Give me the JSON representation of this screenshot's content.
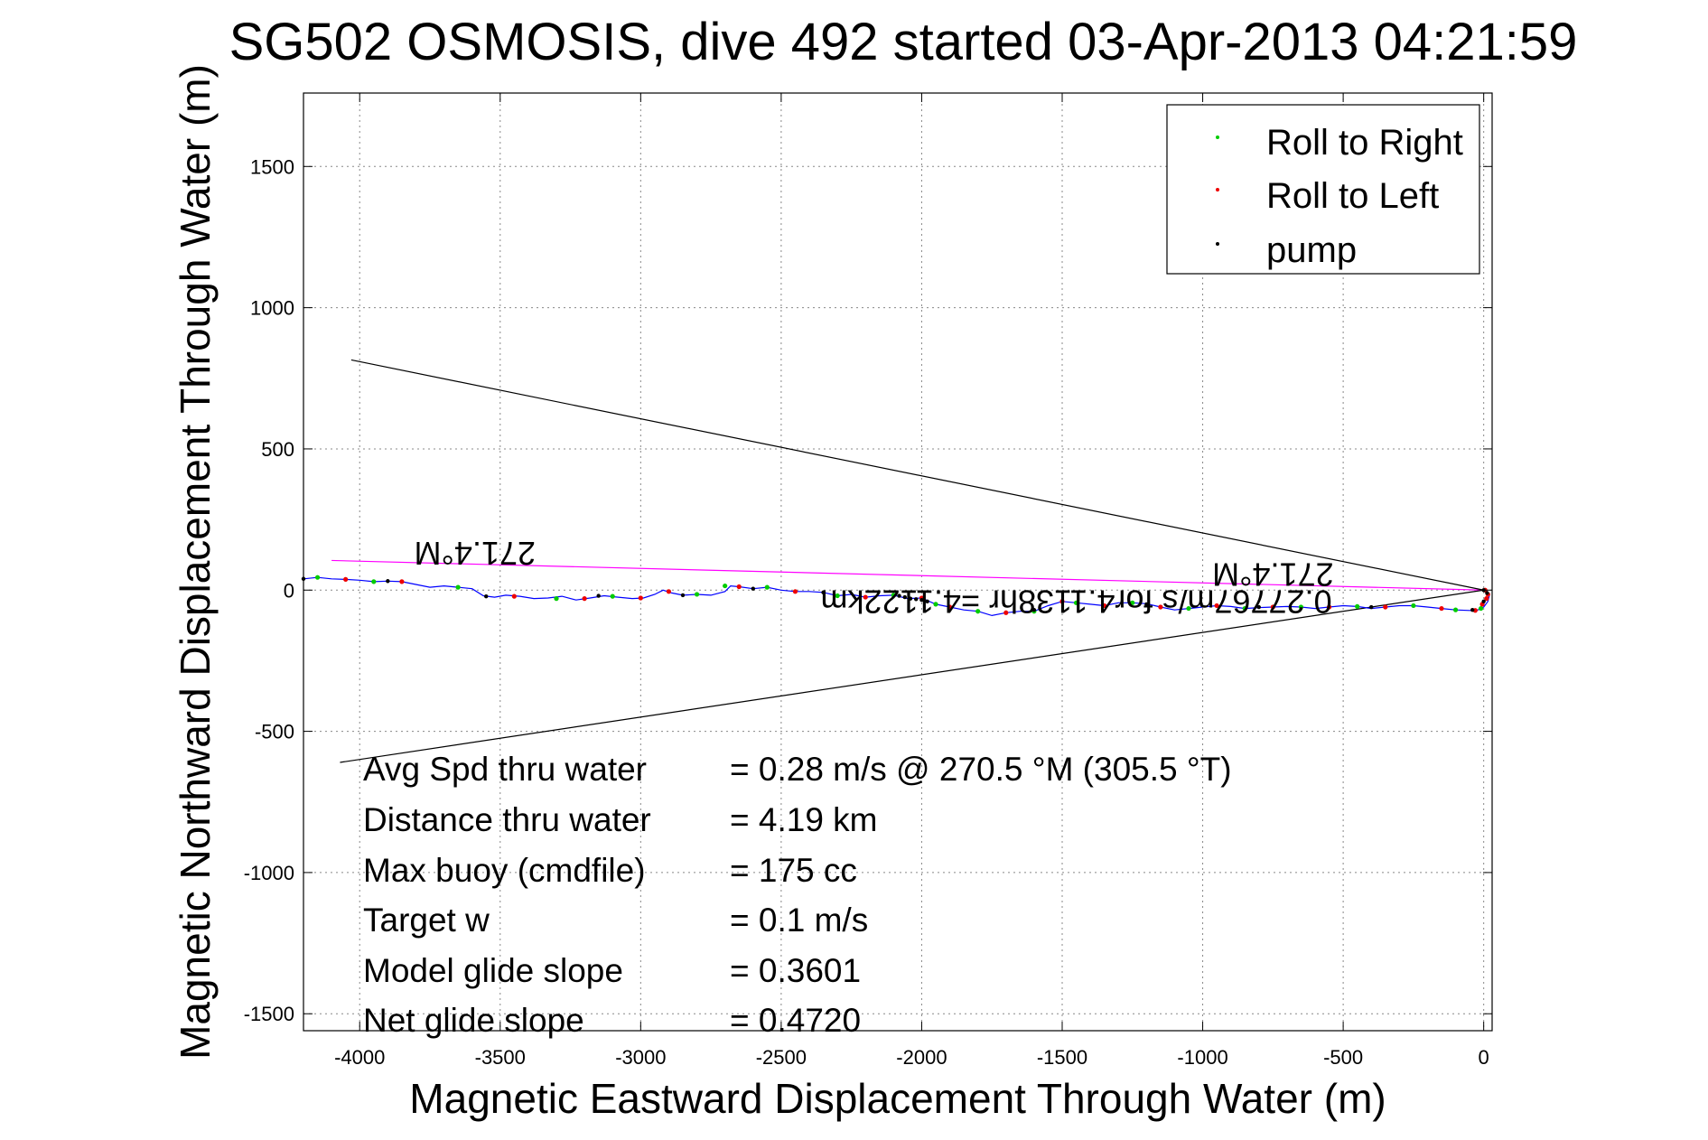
{
  "chart_data": {
    "type": "scatter",
    "title": "SG502 OSMOSIS, dive 492 started 03-Apr-2013 04:21:59",
    "xlabel": "Magnetic Eastward Displacement Through Water (m)",
    "ylabel": "Magnetic Northward Displacement Through Water (m)",
    "xlim": [
      -4200,
      30
    ],
    "ylim": [
      -1560,
      1760
    ],
    "xticks": [
      -4000,
      -3500,
      -3000,
      -2500,
      -2000,
      -1500,
      -1000,
      -500,
      0
    ],
    "yticks": [
      1500,
      1000,
      500,
      0,
      -500,
      -1000,
      -1500
    ],
    "grid": true,
    "legend": {
      "placement": "top-right",
      "entries": [
        {
          "label": "Roll to Right",
          "color": "#00cc00"
        },
        {
          "label": "Roll to Left",
          "color": "#ee0000"
        },
        {
          "label": "pump",
          "color": "#000000"
        }
      ]
    },
    "track": {
      "color": "#0000ff",
      "points": [
        [
          -4200,
          40
        ],
        [
          -4150,
          45
        ],
        [
          -4100,
          40
        ],
        [
          -4050,
          38
        ],
        [
          -4000,
          35
        ],
        [
          -3950,
          30
        ],
        [
          -3900,
          32
        ],
        [
          -3850,
          30
        ],
        [
          -3800,
          20
        ],
        [
          -3750,
          10
        ],
        [
          -3700,
          15
        ],
        [
          -3650,
          10
        ],
        [
          -3600,
          5
        ],
        [
          -3560,
          -20
        ],
        [
          -3520,
          -25
        ],
        [
          -3480,
          -18
        ],
        [
          -3430,
          -22
        ],
        [
          -3380,
          -30
        ],
        [
          -3330,
          -28
        ],
        [
          -3280,
          -22
        ],
        [
          -3230,
          -35
        ],
        [
          -3180,
          -28
        ],
        [
          -3130,
          -20
        ],
        [
          -3080,
          -25
        ],
        [
          -3030,
          -30
        ],
        [
          -2990,
          -28
        ],
        [
          -2950,
          -15
        ],
        [
          -2920,
          0
        ],
        [
          -2890,
          -10
        ],
        [
          -2850,
          -18
        ],
        [
          -2800,
          -15
        ],
        [
          -2750,
          -18
        ],
        [
          -2700,
          -5
        ],
        [
          -2680,
          15
        ],
        [
          -2650,
          12
        ],
        [
          -2600,
          5
        ],
        [
          -2550,
          10
        ],
        [
          -2500,
          0
        ],
        [
          -2450,
          -5
        ],
        [
          -2400,
          -5
        ],
        [
          -2350,
          -8
        ],
        [
          -2300,
          -20
        ],
        [
          -2250,
          -15
        ],
        [
          -2200,
          -25
        ],
        [
          -2150,
          -20
        ],
        [
          -2100,
          -18
        ],
        [
          -2050,
          -30
        ],
        [
          -2000,
          -28
        ],
        [
          -1950,
          -50
        ],
        [
          -1900,
          -60
        ],
        [
          -1850,
          -70
        ],
        [
          -1800,
          -75
        ],
        [
          -1750,
          -90
        ],
        [
          -1700,
          -80
        ],
        [
          -1650,
          -75
        ],
        [
          -1600,
          -75
        ],
        [
          -1550,
          -55
        ],
        [
          -1500,
          -40
        ],
        [
          -1450,
          -45
        ],
        [
          -1400,
          -50
        ],
        [
          -1350,
          -55
        ],
        [
          -1300,
          -45
        ],
        [
          -1250,
          -45
        ],
        [
          -1200,
          -48
        ],
        [
          -1150,
          -60
        ],
        [
          -1100,
          -70
        ],
        [
          -1050,
          -65
        ],
        [
          -1000,
          -60
        ],
        [
          -950,
          -55
        ],
        [
          -900,
          -58
        ],
        [
          -850,
          -65
        ],
        [
          -800,
          -62
        ],
        [
          -750,
          -60
        ],
        [
          -700,
          -58
        ],
        [
          -650,
          -60
        ],
        [
          -600,
          -65
        ],
        [
          -550,
          -60
        ],
        [
          -500,
          -55
        ],
        [
          -450,
          -58
        ],
        [
          -400,
          -65
        ],
        [
          -350,
          -60
        ],
        [
          -300,
          -55
        ],
        [
          -250,
          -55
        ],
        [
          -200,
          -60
        ],
        [
          -150,
          -65
        ],
        [
          -100,
          -70
        ],
        [
          -50,
          -72
        ],
        [
          -20,
          -70
        ],
        [
          0,
          -60
        ],
        [
          15,
          -40
        ],
        [
          20,
          -20
        ],
        [
          10,
          0
        ],
        [
          0,
          5
        ]
      ]
    },
    "roll_right_points": [
      [
        -4150,
        45
      ],
      [
        -3950,
        30
      ],
      [
        -3650,
        10
      ],
      [
        -3300,
        -30
      ],
      [
        -3100,
        -22
      ],
      [
        -2800,
        -15
      ],
      [
        -2700,
        15
      ],
      [
        -2550,
        10
      ],
      [
        -2300,
        -20
      ],
      [
        -2100,
        -18
      ],
      [
        -1950,
        -50
      ],
      [
        -1800,
        -75
      ],
      [
        -1600,
        -75
      ],
      [
        -1450,
        -45
      ],
      [
        -1250,
        -45
      ],
      [
        -1050,
        -65
      ],
      [
        -850,
        -65
      ],
      [
        -650,
        -60
      ],
      [
        -450,
        -58
      ],
      [
        -250,
        -55
      ],
      [
        -100,
        -70
      ],
      [
        -10,
        -65
      ]
    ],
    "roll_left_points": [
      [
        -4050,
        38
      ],
      [
        -3850,
        30
      ],
      [
        -3450,
        -22
      ],
      [
        -3200,
        -30
      ],
      [
        -3000,
        -28
      ],
      [
        -2900,
        -5
      ],
      [
        -2650,
        12
      ],
      [
        -2450,
        -5
      ],
      [
        -2200,
        -25
      ],
      [
        -2000,
        -28
      ],
      [
        -1900,
        -60
      ],
      [
        -1700,
        -80
      ],
      [
        -1500,
        -40
      ],
      [
        -1350,
        -55
      ],
      [
        -1150,
        -60
      ],
      [
        -950,
        -55
      ],
      [
        -750,
        -60
      ],
      [
        -550,
        -60
      ],
      [
        -350,
        -60
      ],
      [
        -150,
        -65
      ],
      [
        -30,
        -72
      ],
      [
        10,
        -30
      ],
      [
        15,
        -15
      ],
      [
        5,
        0
      ],
      [
        -5,
        -50
      ]
    ],
    "pump_points": [
      [
        -4200,
        40
      ],
      [
        -3900,
        32
      ],
      [
        -3550,
        -22
      ],
      [
        -3150,
        -20
      ],
      [
        -2850,
        -18
      ],
      [
        -2600,
        5
      ],
      [
        -2350,
        -8
      ],
      [
        -2080,
        -20
      ],
      [
        -2060,
        -25
      ],
      [
        -2040,
        -30
      ],
      [
        -2020,
        -32
      ],
      [
        -2000,
        -35
      ],
      [
        -1980,
        -40
      ],
      [
        -1600,
        -70
      ],
      [
        -1200,
        -50
      ],
      [
        -800,
        -60
      ],
      [
        -400,
        -60
      ],
      [
        -40,
        -70
      ],
      [
        0,
        -40
      ],
      [
        12,
        -10
      ],
      [
        0,
        0
      ]
    ],
    "reference_lines": [
      {
        "name": "heading-line",
        "color": "#ff00ff",
        "x": [
          -4100,
          0
        ],
        "y": [
          105,
          0
        ]
      },
      {
        "name": "cone-upper",
        "color": "#000000",
        "x": [
          -4030,
          0
        ],
        "y": [
          815,
          0
        ]
      },
      {
        "name": "cone-lower",
        "color": "#000000",
        "x": [
          -4070,
          0
        ],
        "y": [
          -610,
          0
        ]
      }
    ],
    "annotations": [
      {
        "text": "271.4°M",
        "x": -3590,
        "y": 170,
        "rotate": 180
      },
      {
        "text": "271.4°M",
        "x": -750,
        "y": 95,
        "rotate": 180
      },
      {
        "text": "0.27767m/s for4.1138hr =4.1122km",
        "x": -1450,
        "y": 0,
        "rotate": 180
      }
    ],
    "stats": [
      {
        "label": "Avg Spd thru water",
        "value": "=  0.28 m/s @ 270.5 °M (305.5 °T)"
      },
      {
        "label": "Distance thru water",
        "value": "=  4.19 km"
      },
      {
        "label": "Max buoy (cmdfile)",
        "value": "= 175 cc"
      },
      {
        "label": "Target w",
        "value": "= 0.1 m/s"
      },
      {
        "label": "Model glide slope",
        "value": "= 0.3601"
      },
      {
        "label": "Net glide slope",
        "value": "= 0.4720"
      }
    ]
  }
}
